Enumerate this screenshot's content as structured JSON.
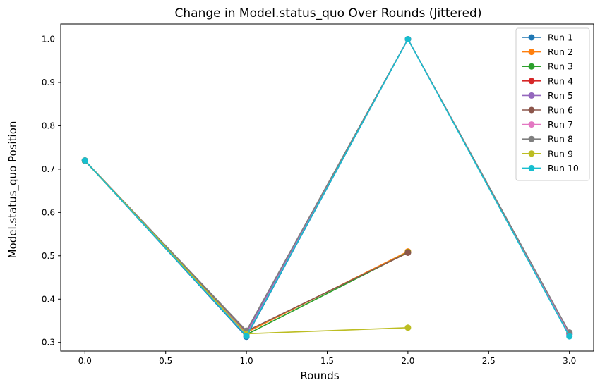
{
  "chart_data": {
    "type": "line",
    "title": "Change in Model.status_quo Over Rounds (Jittered)",
    "xlabel": "Rounds",
    "ylabel": "Model.status_quo Position",
    "xlim": [
      -0.15,
      3.15
    ],
    "ylim": [
      0.28,
      1.035
    ],
    "xticks": [
      0.0,
      0.5,
      1.0,
      1.5,
      2.0,
      2.5,
      3.0
    ],
    "xtick_labels": [
      "0.0",
      "0.5",
      "1.0",
      "1.5",
      "2.0",
      "2.5",
      "3.0"
    ],
    "yticks": [
      0.3,
      0.4,
      0.5,
      0.6,
      0.7,
      0.8,
      0.9,
      1.0
    ],
    "ytick_labels": [
      "0.3",
      "0.4",
      "0.5",
      "0.6",
      "0.7",
      "0.8",
      "0.9",
      "1.0"
    ],
    "grid": false,
    "legend_position": "top-right",
    "marker": "circle",
    "series": [
      {
        "name": "Run 1",
        "color": "#1f77b4",
        "x": [
          0,
          1,
          2,
          3
        ],
        "y": [
          0.72,
          0.313,
          1.0,
          0.318
        ]
      },
      {
        "name": "Run 2",
        "color": "#ff7f0e",
        "x": [
          0,
          1,
          2
        ],
        "y": [
          0.72,
          0.323,
          0.51
        ]
      },
      {
        "name": "Run 3",
        "color": "#2ca02c",
        "x": [
          0,
          1,
          2
        ],
        "y": [
          0.719,
          0.318,
          0.508
        ]
      },
      {
        "name": "Run 4",
        "color": "#d62728",
        "x": [
          0,
          1,
          2,
          3
        ],
        "y": [
          0.72,
          0.326,
          1.0,
          0.321
        ]
      },
      {
        "name": "Run 5",
        "color": "#9467bd",
        "x": [
          0,
          1,
          2,
          3
        ],
        "y": [
          0.72,
          0.322,
          1.0,
          0.319
        ]
      },
      {
        "name": "Run 6",
        "color": "#8c564b",
        "x": [
          0,
          1,
          2
        ],
        "y": [
          0.719,
          0.326,
          0.507
        ]
      },
      {
        "name": "Run 7",
        "color": "#e377c2",
        "x": [
          0,
          1,
          2,
          3
        ],
        "y": [
          0.72,
          0.317,
          1.0,
          0.32
        ]
      },
      {
        "name": "Run 8",
        "color": "#7f7f7f",
        "x": [
          0,
          1,
          2,
          3
        ],
        "y": [
          0.72,
          0.327,
          1.0,
          0.323
        ]
      },
      {
        "name": "Run 9",
        "color": "#bcbd22",
        "x": [
          0,
          1,
          2
        ],
        "y": [
          0.72,
          0.32,
          0.334
        ]
      },
      {
        "name": "Run 10",
        "color": "#17becf",
        "x": [
          0,
          1,
          2,
          3
        ],
        "y": [
          0.72,
          0.315,
          1.0,
          0.314
        ]
      }
    ]
  }
}
